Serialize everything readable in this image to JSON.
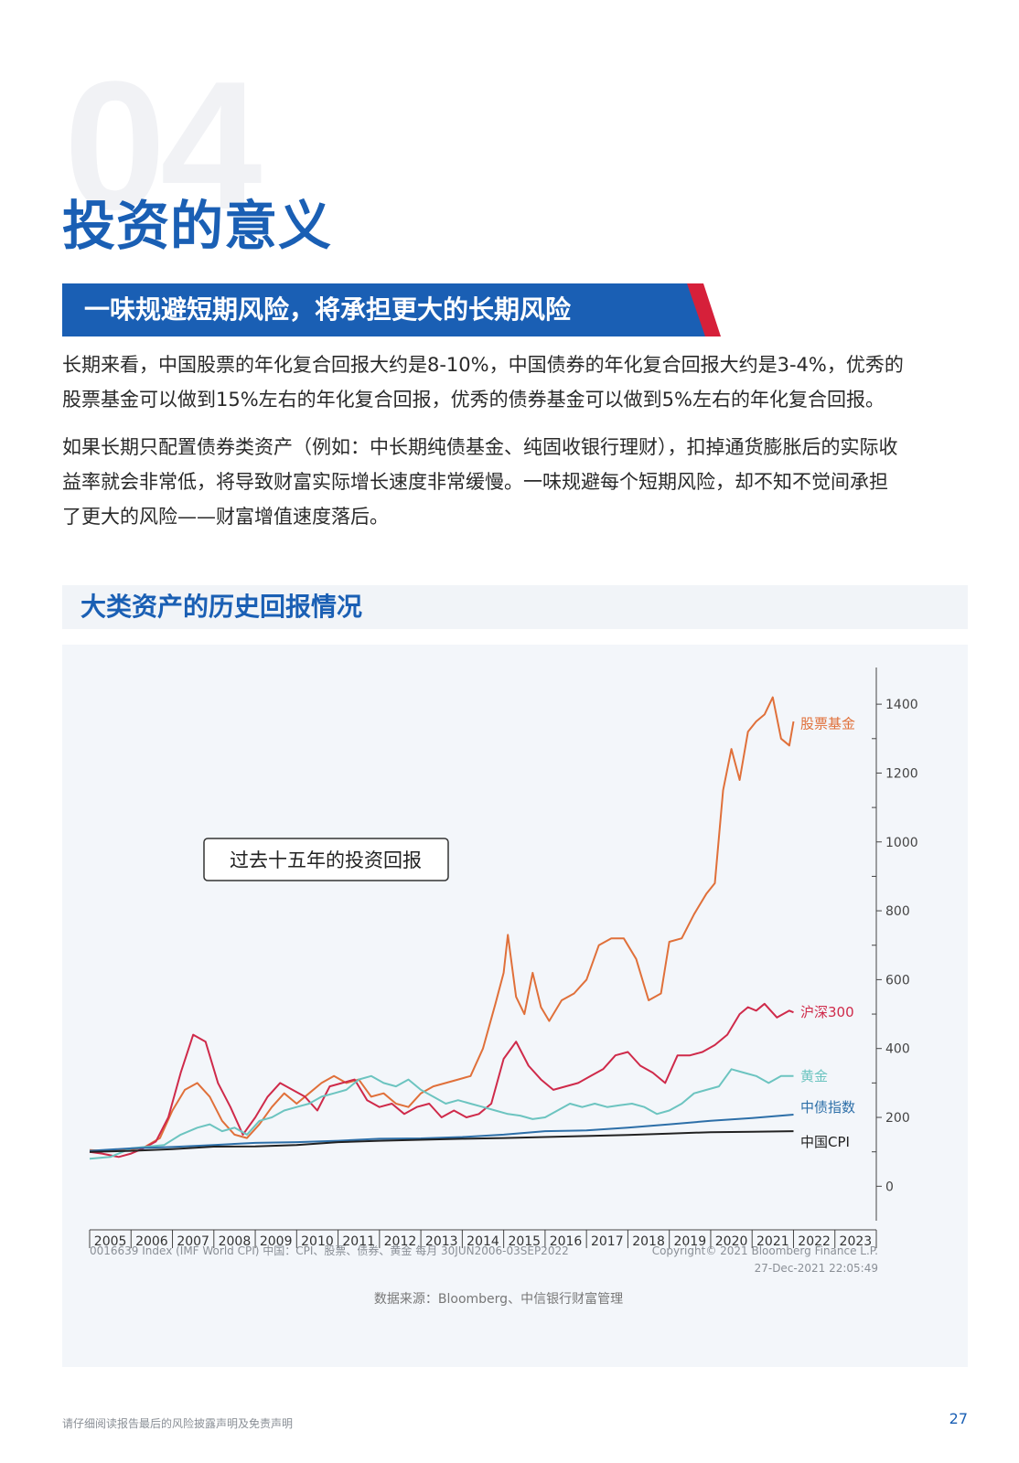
{
  "section_number": "04",
  "title": "投资的意义",
  "banner": "一味规避短期风险，将承担更大的长期风险",
  "paragraph1_line1": "长期来看，中国股票的年化复合回报大约是8-10%，中国债券的年化复合回报大约是3-4%，优秀的",
  "paragraph1_line2": "股票基金可以做到15%左右的年化复合回报，优秀的债券基金可以做到5%左右的年化复合回报。",
  "paragraph2_line1": "如果长期只配置债券类资产（例如：中长期纯债基金、纯固收银行理财），扣掉通货膨胀后的实际收",
  "paragraph2_line2": "益率就会非常低，将导致财富实际增长速度非常缓慢。一味规避每个短期风险，却不知不觉间承担",
  "paragraph2_line3": "了更大的风险——财富增值速度落后。",
  "subhead": "大类资产的历史回报情况",
  "chart_data": {
    "type": "line",
    "annotation": "过去十五年的投资回报",
    "x_labels": [
      "2005",
      "2006",
      "2007",
      "2008",
      "2009",
      "2010",
      "2011",
      "2012",
      "2013",
      "2014",
      "2015",
      "2016",
      "2017",
      "2018",
      "2019",
      "2020",
      "2021",
      "2022",
      "2023"
    ],
    "y_ticks": [
      "0",
      "200",
      "400",
      "600",
      "800",
      "1000",
      "1200",
      "1400"
    ],
    "ylim": [
      -100,
      1480
    ],
    "source_left": "0016639 Index (IMF World CPI) 中国：CPI、股票、债券、黄金  每月 30JUN2006-03SEP2022",
    "copyright": "Copyright© 2021 Bloomberg Finance L.P.",
    "timestamp": "27-Dec-2021  22:05:49",
    "data_source": "数据来源：Bloomberg、中信银行财富管理",
    "series": [
      {
        "name": "股票基金",
        "color": "#e0703a",
        "points": [
          [
            2005,
            105
          ],
          [
            2005.5,
            102
          ],
          [
            2006,
            108
          ],
          [
            2006.3,
            112
          ],
          [
            2006.7,
            140
          ],
          [
            2007,
            220
          ],
          [
            2007.3,
            280
          ],
          [
            2007.6,
            300
          ],
          [
            2007.9,
            260
          ],
          [
            2008.2,
            190
          ],
          [
            2008.5,
            150
          ],
          [
            2008.8,
            140
          ],
          [
            2009.1,
            180
          ],
          [
            2009.4,
            230
          ],
          [
            2009.7,
            270
          ],
          [
            2010,
            240
          ],
          [
            2010.3,
            270
          ],
          [
            2010.6,
            300
          ],
          [
            2010.9,
            320
          ],
          [
            2011.2,
            300
          ],
          [
            2011.5,
            310
          ],
          [
            2011.8,
            260
          ],
          [
            2012.1,
            270
          ],
          [
            2012.4,
            240
          ],
          [
            2012.7,
            230
          ],
          [
            2013,
            270
          ],
          [
            2013.3,
            290
          ],
          [
            2013.6,
            300
          ],
          [
            2013.9,
            310
          ],
          [
            2014.2,
            320
          ],
          [
            2014.5,
            400
          ],
          [
            2014.8,
            530
          ],
          [
            2015.0,
            620
          ],
          [
            2015.1,
            730
          ],
          [
            2015.3,
            550
          ],
          [
            2015.5,
            500
          ],
          [
            2015.7,
            620
          ],
          [
            2015.9,
            520
          ],
          [
            2016.1,
            480
          ],
          [
            2016.4,
            540
          ],
          [
            2016.7,
            560
          ],
          [
            2017,
            600
          ],
          [
            2017.3,
            700
          ],
          [
            2017.6,
            720
          ],
          [
            2017.9,
            720
          ],
          [
            2018.2,
            660
          ],
          [
            2018.5,
            540
          ],
          [
            2018.8,
            560
          ],
          [
            2019,
            710
          ],
          [
            2019.3,
            720
          ],
          [
            2019.6,
            790
          ],
          [
            2019.9,
            850
          ],
          [
            2020.1,
            880
          ],
          [
            2020.3,
            1150
          ],
          [
            2020.5,
            1270
          ],
          [
            2020.7,
            1180
          ],
          [
            2020.9,
            1320
          ],
          [
            2021.1,
            1350
          ],
          [
            2021.3,
            1370
          ],
          [
            2021.5,
            1420
          ],
          [
            2021.7,
            1300
          ],
          [
            2021.9,
            1280
          ],
          [
            2022.0,
            1350
          ]
        ]
      },
      {
        "name": "沪深300",
        "color": "#cf2a4a",
        "points": [
          [
            2005,
            100
          ],
          [
            2005.3,
            95
          ],
          [
            2005.7,
            85
          ],
          [
            2006,
            95
          ],
          [
            2006.3,
            110
          ],
          [
            2006.6,
            130
          ],
          [
            2006.9,
            200
          ],
          [
            2007.2,
            330
          ],
          [
            2007.5,
            440
          ],
          [
            2007.8,
            420
          ],
          [
            2008.1,
            300
          ],
          [
            2008.4,
            230
          ],
          [
            2008.7,
            150
          ],
          [
            2009,
            200
          ],
          [
            2009.3,
            260
          ],
          [
            2009.6,
            300
          ],
          [
            2009.9,
            280
          ],
          [
            2010.2,
            260
          ],
          [
            2010.5,
            220
          ],
          [
            2010.8,
            290
          ],
          [
            2011.1,
            300
          ],
          [
            2011.4,
            310
          ],
          [
            2011.7,
            250
          ],
          [
            2012,
            230
          ],
          [
            2012.3,
            240
          ],
          [
            2012.6,
            210
          ],
          [
            2012.9,
            230
          ],
          [
            2013.2,
            240
          ],
          [
            2013.5,
            200
          ],
          [
            2013.8,
            220
          ],
          [
            2014.1,
            200
          ],
          [
            2014.4,
            210
          ],
          [
            2014.7,
            240
          ],
          [
            2015.0,
            370
          ],
          [
            2015.3,
            420
          ],
          [
            2015.6,
            350
          ],
          [
            2015.9,
            310
          ],
          [
            2016.2,
            280
          ],
          [
            2016.5,
            290
          ],
          [
            2016.8,
            300
          ],
          [
            2017.1,
            320
          ],
          [
            2017.4,
            340
          ],
          [
            2017.7,
            380
          ],
          [
            2018,
            390
          ],
          [
            2018.3,
            350
          ],
          [
            2018.6,
            330
          ],
          [
            2018.9,
            300
          ],
          [
            2019.2,
            380
          ],
          [
            2019.5,
            380
          ],
          [
            2019.8,
            390
          ],
          [
            2020.1,
            410
          ],
          [
            2020.4,
            440
          ],
          [
            2020.7,
            500
          ],
          [
            2020.9,
            520
          ],
          [
            2021.1,
            510
          ],
          [
            2021.3,
            530
          ],
          [
            2021.6,
            490
          ],
          [
            2021.9,
            510
          ],
          [
            2022.0,
            505
          ]
        ]
      },
      {
        "name": "黄金",
        "color": "#6cc4c0",
        "points": [
          [
            2005,
            80
          ],
          [
            2005.5,
            85
          ],
          [
            2006,
            110
          ],
          [
            2006.4,
            115
          ],
          [
            2006.8,
            120
          ],
          [
            2007.2,
            150
          ],
          [
            2007.6,
            170
          ],
          [
            2007.9,
            180
          ],
          [
            2008.2,
            160
          ],
          [
            2008.5,
            170
          ],
          [
            2008.8,
            150
          ],
          [
            2009.1,
            190
          ],
          [
            2009.4,
            200
          ],
          [
            2009.7,
            220
          ],
          [
            2010,
            230
          ],
          [
            2010.3,
            240
          ],
          [
            2010.6,
            260
          ],
          [
            2010.9,
            270
          ],
          [
            2011.2,
            280
          ],
          [
            2011.5,
            310
          ],
          [
            2011.8,
            320
          ],
          [
            2012.1,
            300
          ],
          [
            2012.4,
            290
          ],
          [
            2012.7,
            310
          ],
          [
            2013.0,
            280
          ],
          [
            2013.3,
            260
          ],
          [
            2013.6,
            240
          ],
          [
            2013.9,
            250
          ],
          [
            2014.2,
            240
          ],
          [
            2014.5,
            230
          ],
          [
            2014.8,
            220
          ],
          [
            2015.1,
            210
          ],
          [
            2015.4,
            205
          ],
          [
            2015.7,
            195
          ],
          [
            2016,
            200
          ],
          [
            2016.3,
            220
          ],
          [
            2016.6,
            240
          ],
          [
            2016.9,
            230
          ],
          [
            2017.2,
            240
          ],
          [
            2017.5,
            230
          ],
          [
            2017.8,
            235
          ],
          [
            2018.1,
            240
          ],
          [
            2018.4,
            230
          ],
          [
            2018.7,
            210
          ],
          [
            2019,
            220
          ],
          [
            2019.3,
            240
          ],
          [
            2019.6,
            270
          ],
          [
            2019.9,
            280
          ],
          [
            2020.2,
            290
          ],
          [
            2020.5,
            340
          ],
          [
            2020.8,
            330
          ],
          [
            2021.1,
            320
          ],
          [
            2021.4,
            300
          ],
          [
            2021.7,
            320
          ],
          [
            2022.0,
            320
          ]
        ]
      },
      {
        "name": "中债指数",
        "color": "#2d6fa8",
        "points": [
          [
            2005,
            103
          ],
          [
            2006,
            110
          ],
          [
            2007,
            114
          ],
          [
            2008,
            120
          ],
          [
            2009,
            126
          ],
          [
            2010,
            128
          ],
          [
            2011,
            132
          ],
          [
            2012,
            138
          ],
          [
            2013,
            139
          ],
          [
            2014,
            143
          ],
          [
            2015,
            150
          ],
          [
            2016,
            160
          ],
          [
            2017,
            162
          ],
          [
            2018,
            170
          ],
          [
            2019,
            180
          ],
          [
            2020,
            190
          ],
          [
            2021,
            198
          ],
          [
            2022,
            208
          ]
        ]
      },
      {
        "name": "中国CPI",
        "color": "#222222",
        "points": [
          [
            2005,
            100
          ],
          [
            2006,
            103
          ],
          [
            2007,
            108
          ],
          [
            2008,
            115
          ],
          [
            2009,
            116
          ],
          [
            2010,
            120
          ],
          [
            2011,
            128
          ],
          [
            2012,
            132
          ],
          [
            2013,
            135
          ],
          [
            2014,
            138
          ],
          [
            2015,
            140
          ],
          [
            2016,
            143
          ],
          [
            2017,
            146
          ],
          [
            2018,
            149
          ],
          [
            2019,
            153
          ],
          [
            2020,
            157
          ],
          [
            2021,
            158
          ],
          [
            2022,
            160
          ]
        ]
      }
    ]
  },
  "footer_note": "请仔细阅读报告最后的风险披露声明及免责声明",
  "page_number": "27"
}
